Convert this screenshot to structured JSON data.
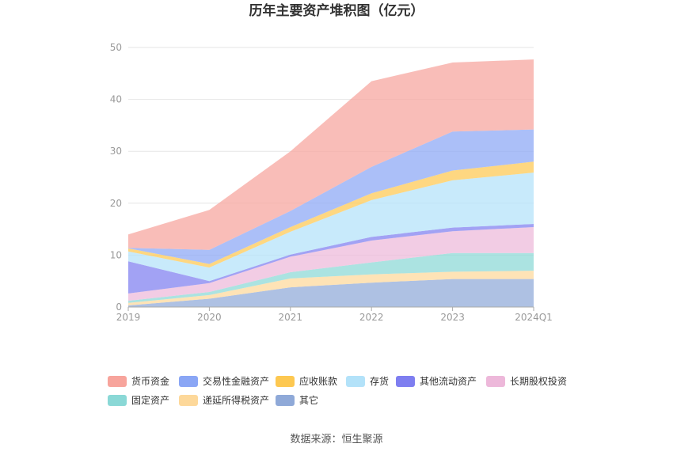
{
  "chart_data": {
    "type": "area",
    "stacked": true,
    "title": "历年主要资产堆积图（亿元）",
    "categories": [
      "2019",
      "2020",
      "2021",
      "2022",
      "2023",
      "2024Q1"
    ],
    "ylim": [
      0,
      50
    ],
    "yticks": [
      "0",
      "10",
      "20",
      "30",
      "40",
      "50"
    ],
    "grid": true,
    "legend_position": "bottom",
    "series": [
      {
        "name": "其它",
        "color": "#8fa9d8",
        "values": [
          0.3,
          1.6,
          3.8,
          4.7,
          5.4,
          5.4
        ]
      },
      {
        "name": "递延所得税资产",
        "color": "#fdd89a",
        "values": [
          0.5,
          0.7,
          1.7,
          1.6,
          1.4,
          1.6
        ]
      },
      {
        "name": "固定资产",
        "color": "#8ad8d6",
        "values": [
          0.4,
          0.6,
          1.2,
          2.3,
          3.6,
          3.4
        ]
      },
      {
        "name": "长期股权投资",
        "color": "#edb8da",
        "values": [
          1.4,
          1.7,
          3.0,
          4.2,
          4.2,
          5.0
        ]
      },
      {
        "name": "其他流动资产",
        "color": "#7e7ef0",
        "values": [
          6.2,
          0.4,
          0.4,
          0.7,
          0.7,
          0.6
        ]
      },
      {
        "name": "存货",
        "color": "#b3e2f9",
        "values": [
          1.9,
          2.6,
          4.4,
          7.1,
          9.1,
          9.9
        ]
      },
      {
        "name": "应收账款",
        "color": "#fdc851",
        "values": [
          0.6,
          0.7,
          0.9,
          1.3,
          1.9,
          2.1
        ]
      },
      {
        "name": "交易性金融资产",
        "color": "#8aa6f5",
        "values": [
          0.1,
          2.7,
          3.1,
          5.1,
          7.5,
          6.2
        ]
      },
      {
        "name": "货币资金",
        "color": "#f7a49c",
        "values": [
          2.6,
          7.7,
          11.5,
          16.5,
          13.3,
          13.5
        ]
      }
    ],
    "legend_order": [
      "货币资金",
      "交易性金融资产",
      "应收账款",
      "存货",
      "其他流动资产",
      "长期股权投资",
      "固定资产",
      "递延所得税资产",
      "其它"
    ]
  },
  "source": "数据来源：恒生聚源"
}
